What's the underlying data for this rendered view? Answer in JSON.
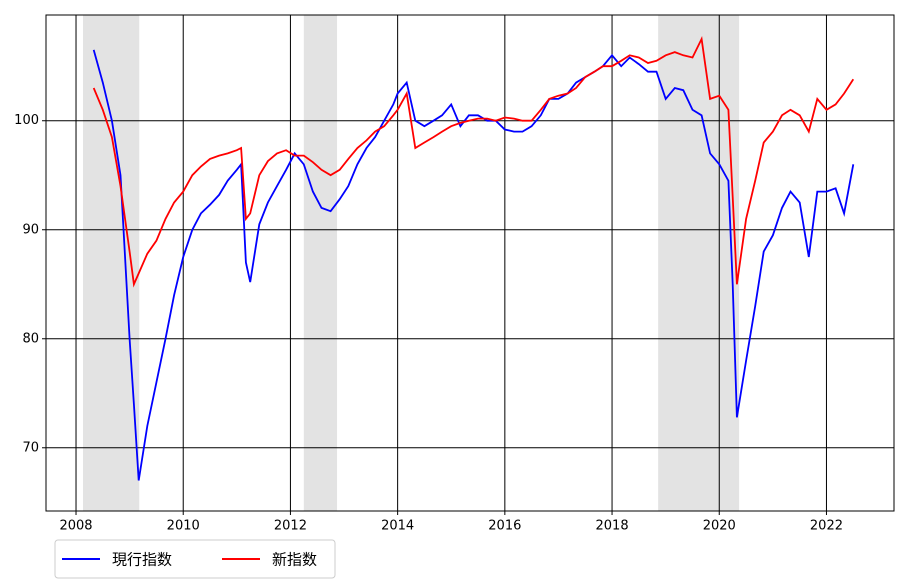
{
  "chart_data": {
    "type": "line",
    "x": [
      2008.33,
      2008.5,
      2008.67,
      2008.83,
      2009.0,
      2009.08,
      2009.17,
      2009.33,
      2009.5,
      2009.67,
      2009.83,
      2010.0,
      2010.17,
      2010.33,
      2010.5,
      2010.67,
      2010.83,
      2011.0,
      2011.08,
      2011.17,
      2011.25,
      2011.42,
      2011.58,
      2011.75,
      2011.92,
      2012.08,
      2012.25,
      2012.42,
      2012.58,
      2012.75,
      2012.92,
      2013.08,
      2013.25,
      2013.42,
      2013.58,
      2013.75,
      2013.92,
      2014.0,
      2014.17,
      2014.33,
      2014.5,
      2014.67,
      2014.83,
      2015.0,
      2015.17,
      2015.33,
      2015.5,
      2015.67,
      2015.83,
      2016.0,
      2016.17,
      2016.33,
      2016.5,
      2016.67,
      2016.83,
      2017.0,
      2017.17,
      2017.33,
      2017.5,
      2017.67,
      2017.83,
      2018.0,
      2018.17,
      2018.33,
      2018.5,
      2018.67,
      2018.83,
      2019.0,
      2019.17,
      2019.33,
      2019.5,
      2019.67,
      2019.83,
      2020.0,
      2020.17,
      2020.25,
      2020.33,
      2020.5,
      2020.67,
      2020.83,
      2021.0,
      2021.17,
      2021.33,
      2021.5,
      2021.67,
      2021.83,
      2022.0,
      2022.17,
      2022.33,
      2022.5
    ],
    "series": [
      {
        "name": "現行指数",
        "color": "#0000ff",
        "values": [
          106.5,
          103.5,
          100,
          95,
          80,
          74,
          67,
          72,
          76,
          80,
          84,
          87.5,
          90,
          91.5,
          92.3,
          93.2,
          94.5,
          95.5,
          96,
          87,
          85.2,
          90.5,
          92.5,
          94,
          95.5,
          97,
          96,
          93.5,
          92,
          91.7,
          92.8,
          94,
          96,
          97.5,
          98.5,
          100,
          101.5,
          102.5,
          103.5,
          100,
          99.5,
          100,
          100.5,
          101.5,
          99.5,
          100.5,
          100.5,
          100,
          100,
          99.2,
          99,
          99,
          99.5,
          100.5,
          102,
          102,
          102.5,
          103.5,
          104,
          104.5,
          105,
          106,
          105,
          105.8,
          105.2,
          104.5,
          104.5,
          102,
          103,
          102.8,
          101,
          100.5,
          97,
          96,
          94.5,
          85,
          72.8,
          78,
          83,
          88,
          89.5,
          92,
          93.5,
          92.5,
          87.5,
          93.5,
          93.5,
          93.8,
          91.5,
          96
        ]
      },
      {
        "name": "新指数",
        "color": "#ff0000",
        "values": [
          103,
          101,
          98.5,
          94,
          88,
          85,
          86,
          87.8,
          89,
          91,
          92.5,
          93.5,
          95,
          95.8,
          96.5,
          96.8,
          97,
          97.3,
          97.5,
          91,
          91.5,
          95,
          96.3,
          97,
          97.3,
          96.8,
          96.8,
          96.2,
          95.5,
          95,
          95.5,
          96.5,
          97.5,
          98.2,
          99,
          99.5,
          100.5,
          101,
          102.5,
          97.5,
          98,
          98.5,
          99,
          99.5,
          99.8,
          100,
          100.2,
          100.2,
          100,
          100.3,
          100.2,
          100,
          100,
          101,
          102,
          102.3,
          102.5,
          103,
          104,
          104.5,
          105,
          105,
          105.5,
          106,
          105.8,
          105.3,
          105.5,
          106,
          106.3,
          106,
          105.8,
          107.5,
          102,
          102.3,
          101,
          93,
          85,
          91,
          94.5,
          98,
          99,
          100.5,
          101,
          100.5,
          99,
          102,
          101,
          101.5,
          102.5,
          103.8
        ]
      }
    ],
    "shaded_spans": [
      [
        2008.13,
        2009.18
      ],
      [
        2012.25,
        2012.87
      ],
      [
        2018.86,
        2020.37
      ]
    ],
    "xlim": [
      2007.44,
      2023.26
    ],
    "ylim": [
      64.2,
      109.7
    ],
    "xticks": [
      2008,
      2010,
      2012,
      2014,
      2016,
      2018,
      2020,
      2022
    ],
    "yticks": [
      70,
      80,
      90,
      100
    ],
    "grid": true,
    "legend": "lower left outside"
  }
}
